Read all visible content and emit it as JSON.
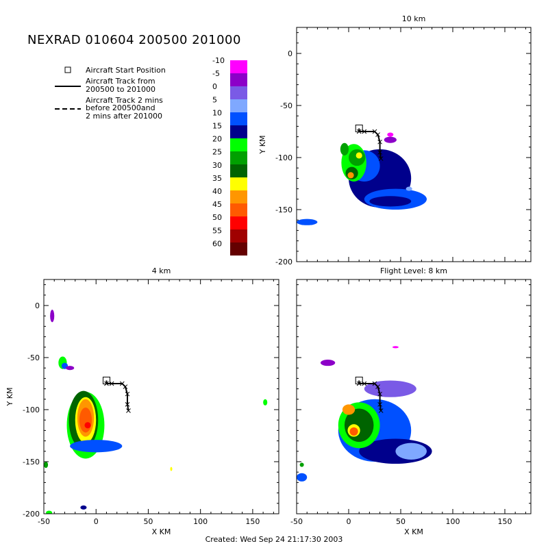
{
  "chart_data": {
    "type": "heatmap",
    "title": "NEXRAD 010604 200500 201000",
    "footer": "Created: Wed Sep 24 21:17:30 2003",
    "legend": {
      "start": "Aircraft Start Position",
      "track_solid": [
        "Aircraft Track from",
        "200500 to 201000"
      ],
      "track_dashed": [
        "Aircraft Track 2 mins",
        "before 200500and",
        "2 mins after 201000"
      ]
    },
    "colorbar": {
      "levels": [
        "-10",
        "-5",
        "0",
        "5",
        "10",
        "15",
        "20",
        "25",
        "30",
        "35",
        "40",
        "45",
        "50",
        "55",
        "60"
      ],
      "colors": [
        "#ff00ff",
        "#8c00c8",
        "#7a5ae6",
        "#7fa8ff",
        "#0050ff",
        "#00008c",
        "#00ff00",
        "#00a000",
        "#006400",
        "#ffff00",
        "#ff9600",
        "#ff5a00",
        "#ff0000",
        "#a00000",
        "#640000"
      ]
    },
    "panels": [
      {
        "title": "10 km",
        "ylabel": "Y KM",
        "xlabel": "",
        "xlim": [
          -50,
          175
        ],
        "ylim": [
          -200,
          25
        ],
        "xticks": [],
        "yticks": [
          "0",
          "-50",
          "-100",
          "-150",
          "-200"
        ],
        "blobs": [
          {
            "x": 30,
            "y": -120,
            "rx": 30,
            "ry": 28,
            "c": 5
          },
          {
            "x": 45,
            "y": -140,
            "rx": 30,
            "ry": 10,
            "c": 4
          },
          {
            "x": -40,
            "y": -162,
            "rx": 10,
            "ry": 3,
            "c": 4
          },
          {
            "x": 15,
            "y": -108,
            "rx": 15,
            "ry": 15,
            "c": 4
          },
          {
            "x": 5,
            "y": -105,
            "rx": 12,
            "ry": 18,
            "c": 6
          },
          {
            "x": 8,
            "y": -100,
            "rx": 8,
            "ry": 8,
            "c": 7
          },
          {
            "x": 3,
            "y": -115,
            "rx": 6,
            "ry": 6,
            "c": 8
          },
          {
            "x": 2,
            "y": -117,
            "rx": 3,
            "ry": 3,
            "c": 10
          },
          {
            "x": 10,
            "y": -98,
            "rx": 3,
            "ry": 3,
            "c": 9
          },
          {
            "x": -4,
            "y": -92,
            "rx": 4,
            "ry": 6,
            "c": 7
          },
          {
            "x": 40,
            "y": -83,
            "rx": 6,
            "ry": 3,
            "c": 1
          },
          {
            "x": 40,
            "y": -78,
            "rx": 3,
            "ry": 2,
            "c": 0
          },
          {
            "x": 40,
            "y": -142,
            "rx": 20,
            "ry": 5,
            "c": 5
          },
          {
            "x": 58,
            "y": -130,
            "rx": 3,
            "ry": 2,
            "c": 3
          }
        ],
        "track": [
          [
            10,
            -72
          ],
          [
            10,
            -75
          ],
          [
            15,
            -75
          ],
          [
            25,
            -75
          ],
          [
            28,
            -78
          ],
          [
            30,
            -85
          ],
          [
            30,
            -95
          ],
          [
            31,
            -101
          ]
        ],
        "start": [
          10,
          -72
        ]
      },
      {
        "title": "4 km",
        "ylabel": "Y KM",
        "xlabel": "X KM",
        "xlim": [
          -50,
          175
        ],
        "ylim": [
          -200,
          25
        ],
        "xticks": [
          "-50",
          "0",
          "50",
          "100",
          "150"
        ],
        "yticks": [
          "0",
          "-50",
          "-100",
          "-150",
          "-200"
        ],
        "blobs": [
          {
            "x": -10,
            "y": -115,
            "rx": 18,
            "ry": 32,
            "c": 6
          },
          {
            "x": -12,
            "y": -110,
            "rx": 14,
            "ry": 28,
            "c": 8
          },
          {
            "x": -10,
            "y": -110,
            "rx": 10,
            "ry": 22,
            "c": 9
          },
          {
            "x": -10,
            "y": -108,
            "rx": 8,
            "ry": 18,
            "c": 10
          },
          {
            "x": -10,
            "y": -110,
            "rx": 6,
            "ry": 12,
            "c": 11
          },
          {
            "x": -8,
            "y": -115,
            "rx": 3,
            "ry": 3,
            "c": 12
          },
          {
            "x": 0,
            "y": -135,
            "rx": 25,
            "ry": 6,
            "c": 4
          },
          {
            "x": -32,
            "y": -55,
            "rx": 4,
            "ry": 6,
            "c": 6
          },
          {
            "x": -30,
            "y": -58,
            "rx": 3,
            "ry": 3,
            "c": 4
          },
          {
            "x": 162,
            "y": -93,
            "rx": 2,
            "ry": 3,
            "c": 6
          },
          {
            "x": -48,
            "y": -153,
            "rx": 2,
            "ry": 3,
            "c": 7
          },
          {
            "x": 72,
            "y": -157,
            "rx": 1,
            "ry": 2,
            "c": 9
          },
          {
            "x": -12,
            "y": -194,
            "rx": 3,
            "ry": 2,
            "c": 5
          },
          {
            "x": -45,
            "y": -199,
            "rx": 3,
            "ry": 2,
            "c": 6
          },
          {
            "x": -42,
            "y": -10,
            "rx": 2,
            "ry": 6,
            "c": 1
          },
          {
            "x": -25,
            "y": -60,
            "rx": 4,
            "ry": 2,
            "c": 1
          }
        ],
        "track": [
          [
            10,
            -72
          ],
          [
            10,
            -75
          ],
          [
            15,
            -75
          ],
          [
            25,
            -75
          ],
          [
            28,
            -78
          ],
          [
            30,
            -85
          ],
          [
            30,
            -95
          ],
          [
            31,
            -101
          ]
        ],
        "start": [
          10,
          -72
        ]
      },
      {
        "title": "Flight Level: 8 km",
        "ylabel": "",
        "xlabel": "X KM",
        "xlim": [
          -50,
          175
        ],
        "ylim": [
          -200,
          25
        ],
        "xticks": [
          "-50",
          "0",
          "50",
          "100",
          "150"
        ],
        "yticks": [],
        "blobs": [
          {
            "x": 25,
            "y": -120,
            "rx": 35,
            "ry": 30,
            "c": 4
          },
          {
            "x": 45,
            "y": -140,
            "rx": 35,
            "ry": 12,
            "c": 5
          },
          {
            "x": 40,
            "y": -80,
            "rx": 25,
            "ry": 8,
            "c": 2
          },
          {
            "x": 10,
            "y": -115,
            "rx": 20,
            "ry": 22,
            "c": 6
          },
          {
            "x": 10,
            "y": -115,
            "rx": 14,
            "ry": 16,
            "c": 8
          },
          {
            "x": 5,
            "y": -120,
            "rx": 6,
            "ry": 6,
            "c": 9
          },
          {
            "x": 5,
            "y": -121,
            "rx": 4,
            "ry": 4,
            "c": 11
          },
          {
            "x": 0,
            "y": -100,
            "rx": 6,
            "ry": 5,
            "c": 10
          },
          {
            "x": -45,
            "y": -165,
            "rx": 5,
            "ry": 4,
            "c": 4
          },
          {
            "x": -45,
            "y": -153,
            "rx": 2,
            "ry": 2,
            "c": 7
          },
          {
            "x": -20,
            "y": -55,
            "rx": 7,
            "ry": 3,
            "c": 1
          },
          {
            "x": 60,
            "y": -140,
            "rx": 15,
            "ry": 8,
            "c": 3
          },
          {
            "x": 45,
            "y": -40,
            "rx": 3,
            "ry": 1,
            "c": 0
          }
        ],
        "track": [
          [
            10,
            -72
          ],
          [
            10,
            -75
          ],
          [
            15,
            -75
          ],
          [
            25,
            -75
          ],
          [
            28,
            -78
          ],
          [
            30,
            -85
          ],
          [
            30,
            -95
          ],
          [
            31,
            -101
          ]
        ],
        "start": [
          10,
          -72
        ]
      }
    ]
  }
}
